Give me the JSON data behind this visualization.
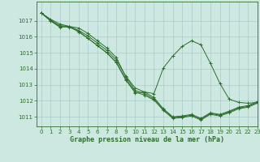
{
  "title": "Graphe pression niveau de la mer (hPa)",
  "background_color": "#cce8e0",
  "grid_color": "#aacccc",
  "line_color": "#2d6e2d",
  "xlim": [
    -0.5,
    23
  ],
  "ylim": [
    1010.4,
    1018.2
  ],
  "yticks": [
    1011,
    1012,
    1013,
    1014,
    1015,
    1016,
    1017
  ],
  "xticks": [
    0,
    1,
    2,
    3,
    4,
    5,
    6,
    7,
    8,
    9,
    10,
    11,
    12,
    13,
    14,
    15,
    16,
    17,
    18,
    19,
    20,
    21,
    22,
    23
  ],
  "series": [
    [
      1017.5,
      1017.1,
      1016.8,
      1016.65,
      1016.55,
      1016.2,
      1015.75,
      1015.3,
      1014.7,
      1013.5,
      1012.65,
      1012.45,
      1012.1,
      1011.45,
      1010.95,
      1011.0,
      1011.1,
      1010.85,
      1011.2,
      1011.1,
      1011.3,
      1011.55,
      1011.65,
      1011.9
    ],
    [
      1017.5,
      1017.05,
      1016.7,
      1016.65,
      1016.4,
      1016.05,
      1015.6,
      1015.15,
      1014.55,
      1013.55,
      1012.8,
      1012.55,
      1012.2,
      1011.5,
      1011.0,
      1011.05,
      1011.15,
      1010.9,
      1011.25,
      1011.15,
      1011.35,
      1011.6,
      1011.7,
      1011.95
    ],
    [
      1017.5,
      1017.0,
      1016.65,
      1016.6,
      1016.35,
      1015.9,
      1015.45,
      1015.0,
      1014.4,
      1013.35,
      1012.55,
      1012.35,
      1012.05,
      1011.4,
      1010.9,
      1010.95,
      1011.05,
      1010.8,
      1011.15,
      1011.05,
      1011.25,
      1011.5,
      1011.6,
      1011.85
    ]
  ],
  "series_wide": [
    1017.5,
    1017.0,
    1016.6,
    1016.65,
    1016.3,
    1015.9,
    1015.45,
    1015.0,
    1014.38,
    1013.3,
    1012.5,
    1012.55,
    1012.45,
    1014.05,
    1014.8,
    1015.4,
    1015.75,
    1015.5,
    1014.35,
    1013.1,
    1012.1,
    1011.9,
    1011.85,
    1011.9
  ]
}
